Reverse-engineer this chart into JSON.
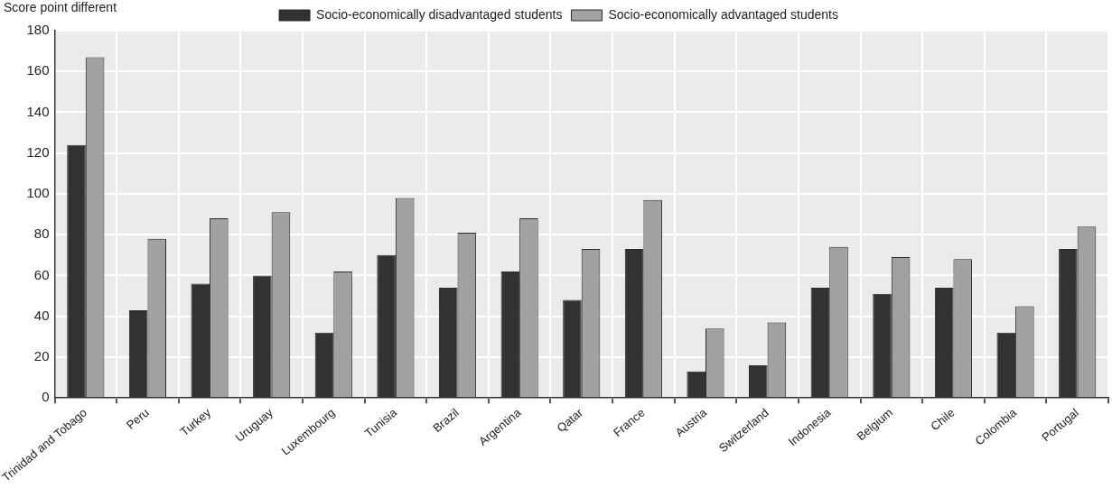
{
  "chart_data": {
    "type": "bar",
    "ylabel": "Score point different",
    "categories": [
      "Trinidad and Tobago",
      "Peru",
      "Turkey",
      "Uruguay",
      "Luxembourg",
      "Tunisia",
      "Brazil",
      "Argentina",
      "Qatar",
      "France",
      "Austria",
      "Switzerland",
      "Indonesia",
      "Belgium",
      "Chile",
      "Colombia",
      "Portugal"
    ],
    "series": [
      {
        "name": "Socio-economically disadvantaged students",
        "color": "#333132",
        "values": [
          124,
          43,
          56,
          60,
          32,
          70,
          54,
          62,
          48,
          73,
          13,
          16,
          54,
          51,
          54,
          32,
          73
        ]
      },
      {
        "name": "Socio-economically advantaged students",
        "color": "#a0a1a3",
        "values": [
          167,
          78,
          88,
          91,
          62,
          98,
          81,
          88,
          73,
          97,
          34,
          37,
          74,
          69,
          68,
          45,
          84
        ]
      }
    ],
    "ylim": [
      0,
      180
    ],
    "yticks": [
      0,
      20,
      40,
      60,
      80,
      100,
      120,
      140,
      160,
      180
    ],
    "grid": true,
    "legend": "top"
  }
}
